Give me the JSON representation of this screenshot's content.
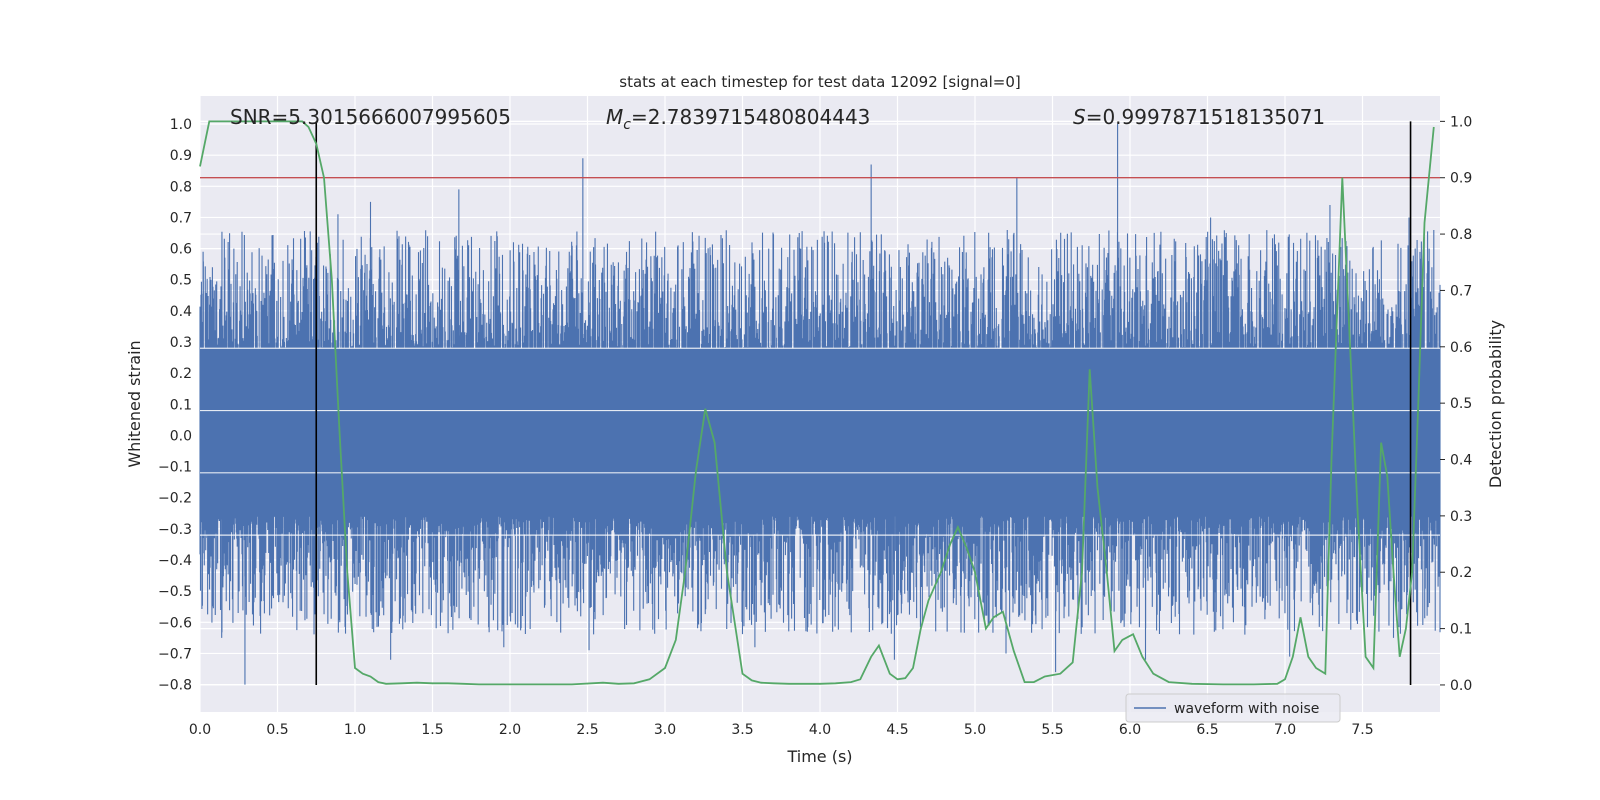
{
  "chart_data": {
    "type": "line",
    "title": "stats at each timestep for test data 12092 [signal=0]",
    "xlabel": "Time (s)",
    "ylabel": "Whitened strain",
    "y2label": "Detection probability",
    "xlim": [
      0.0,
      8.0
    ],
    "ylim": [
      -0.888,
      1.09
    ],
    "y2lim": [
      -0.048,
      1.045
    ],
    "xticks": [
      "0.0",
      "0.5",
      "1.0",
      "1.5",
      "2.0",
      "2.5",
      "3.0",
      "3.5",
      "4.0",
      "4.5",
      "5.0",
      "5.5",
      "6.0",
      "6.5",
      "7.0",
      "7.5"
    ],
    "yticks": [
      "-0.8",
      "-0.7",
      "-0.6",
      "-0.5",
      "-0.4",
      "-0.3",
      "-0.2",
      "-0.1",
      "0.0",
      "0.1",
      "0.2",
      "0.3",
      "0.4",
      "0.5",
      "0.6",
      "0.7",
      "0.8",
      "0.9",
      "1.0"
    ],
    "y2ticks": [
      "0.0",
      "0.1",
      "0.2",
      "0.3",
      "0.4",
      "0.5",
      "0.6",
      "0.7",
      "0.8",
      "0.9",
      "1.0"
    ],
    "grid": true,
    "legend": {
      "position": "lower-right",
      "entries": [
        "waveform with noise"
      ]
    },
    "annotations": {
      "snr": "SNR=5.3015666007995605",
      "mc_symbol": "M",
      "mc_sub": "c",
      "mc_value": "=2.7839715480804443",
      "s_symbol": "S",
      "s_value": "=0.9997871518135071"
    },
    "threshold": 0.9,
    "vlines": [
      0.75,
      7.81
    ],
    "series": [
      {
        "name": "waveform with noise",
        "axis": "left",
        "color": "#4c72b0",
        "envelope_max": 1.0,
        "envelope_min": -0.8,
        "peaks": [
          [
            0.02,
            0.59
          ],
          [
            0.68,
            0.6
          ],
          [
            0.89,
            0.71
          ],
          [
            1.1,
            0.75
          ],
          [
            1.67,
            0.79
          ],
          [
            2.47,
            0.89
          ],
          [
            4.33,
            0.87
          ],
          [
            5.27,
            0.83
          ],
          [
            5.92,
            1.0
          ],
          [
            6.52,
            0.7
          ],
          [
            7.29,
            0.74
          ],
          [
            7.8,
            0.7
          ],
          [
            7.93,
            0.6
          ]
        ],
        "troughs": [
          [
            0.14,
            -0.65
          ],
          [
            0.29,
            -0.8
          ],
          [
            1.23,
            -0.72
          ],
          [
            1.96,
            -0.68
          ],
          [
            2.51,
            -0.69
          ],
          [
            3.58,
            -0.68
          ],
          [
            4.48,
            -0.72
          ],
          [
            5.2,
            -0.7
          ],
          [
            5.52,
            -0.76
          ],
          [
            6.1,
            -0.72
          ],
          [
            7.03,
            -0.71
          ],
          [
            7.7,
            -0.65
          ]
        ]
      },
      {
        "name": "Detection probability",
        "axis": "right",
        "color": "#55a868",
        "x": [
          0.0,
          0.06,
          0.12,
          0.2,
          0.3,
          0.4,
          0.5,
          0.6,
          0.66,
          0.7,
          0.75,
          0.8,
          0.85,
          0.9,
          0.95,
          1.0,
          1.05,
          1.1,
          1.15,
          1.2,
          1.3,
          1.4,
          1.5,
          1.6,
          1.7,
          1.8,
          1.9,
          2.0,
          2.2,
          2.4,
          2.6,
          2.7,
          2.8,
          2.9,
          3.0,
          3.07,
          3.13,
          3.2,
          3.26,
          3.32,
          3.4,
          3.5,
          3.56,
          3.62,
          3.7,
          3.8,
          3.9,
          4.0,
          4.1,
          4.2,
          4.26,
          4.33,
          4.38,
          4.45,
          4.5,
          4.55,
          4.6,
          4.65,
          4.7,
          4.78,
          4.84,
          4.89,
          4.95,
          5.0,
          5.07,
          5.12,
          5.18,
          5.25,
          5.32,
          5.38,
          5.45,
          5.55,
          5.63,
          5.69,
          5.74,
          5.79,
          5.85,
          5.9,
          5.95,
          6.02,
          6.08,
          6.15,
          6.25,
          6.4,
          6.6,
          6.8,
          6.95,
          7.0,
          7.05,
          7.1,
          7.15,
          7.2,
          7.26,
          7.3,
          7.37,
          7.42,
          7.47,
          7.52,
          7.57,
          7.62,
          7.66,
          7.7,
          7.74,
          7.78,
          7.82,
          7.86,
          7.9,
          7.96
        ],
        "y": [
          0.92,
          1.0,
          1.0,
          1.0,
          1.0,
          1.0,
          1.0,
          1.0,
          1.0,
          0.99,
          0.96,
          0.9,
          0.72,
          0.45,
          0.2,
          0.03,
          0.02,
          0.015,
          0.005,
          0.002,
          0.003,
          0.004,
          0.003,
          0.003,
          0.002,
          0.001,
          0.001,
          0.001,
          0.001,
          0.001,
          0.004,
          0.002,
          0.003,
          0.01,
          0.03,
          0.08,
          0.2,
          0.38,
          0.49,
          0.43,
          0.2,
          0.02,
          0.008,
          0.004,
          0.003,
          0.002,
          0.002,
          0.002,
          0.003,
          0.005,
          0.01,
          0.05,
          0.07,
          0.02,
          0.01,
          0.012,
          0.03,
          0.1,
          0.15,
          0.2,
          0.25,
          0.28,
          0.24,
          0.2,
          0.1,
          0.12,
          0.13,
          0.06,
          0.005,
          0.005,
          0.015,
          0.02,
          0.04,
          0.2,
          0.56,
          0.35,
          0.2,
          0.06,
          0.08,
          0.09,
          0.05,
          0.02,
          0.005,
          0.002,
          0.001,
          0.001,
          0.002,
          0.01,
          0.05,
          0.12,
          0.05,
          0.03,
          0.02,
          0.4,
          0.9,
          0.6,
          0.3,
          0.05,
          0.03,
          0.43,
          0.37,
          0.2,
          0.05,
          0.1,
          0.2,
          0.5,
          0.82,
          0.99
        ]
      }
    ]
  }
}
